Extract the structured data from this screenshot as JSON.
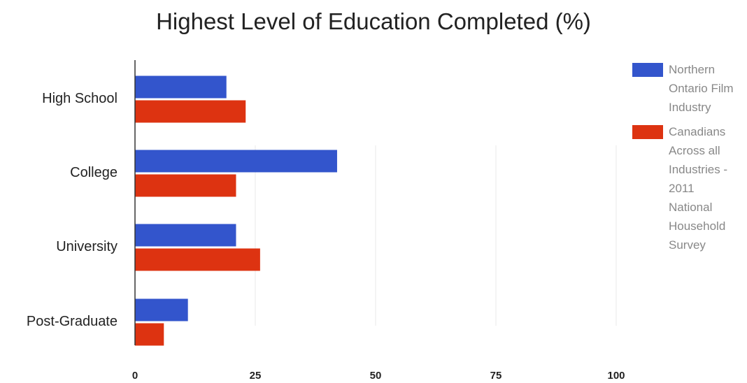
{
  "chart_data": {
    "type": "bar",
    "orientation": "horizontal",
    "title": "Highest Level of Education Completed (%)",
    "categories": [
      "High School",
      "College",
      "University",
      "Post-Graduate"
    ],
    "series": [
      {
        "name": "Northern Ontario Film Industry",
        "color": "#3355cc",
        "values": [
          19,
          42,
          21,
          11
        ]
      },
      {
        "name": "Canadians Across all Industries - 2011 National Household Survey",
        "color": "#dd3311",
        "values": [
          23,
          21,
          26,
          6
        ]
      }
    ],
    "xlim": [
      0,
      100
    ],
    "xticks": [
      "0",
      "25",
      "50",
      "75",
      "100"
    ],
    "grid": true,
    "legend_position": "right"
  }
}
